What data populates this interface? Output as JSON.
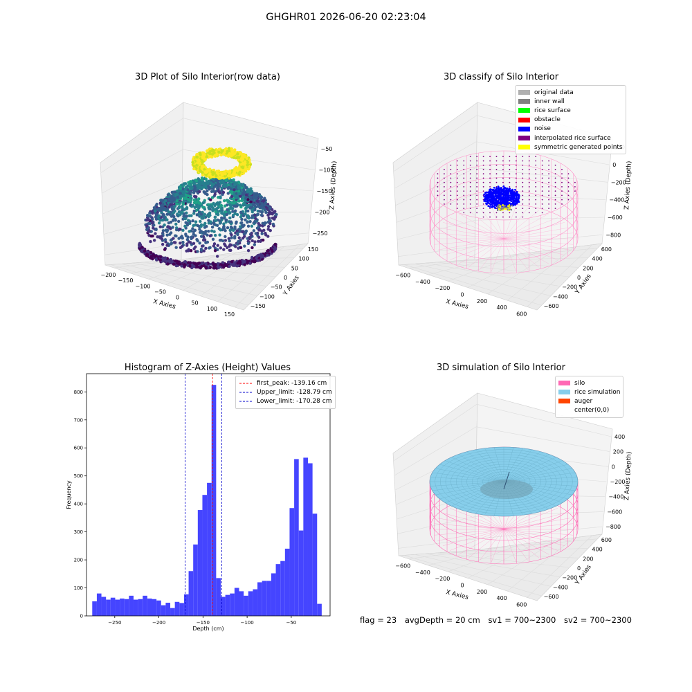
{
  "suptitle": "GHGHR01 2026-06-20 02:23:04",
  "footer": {
    "flag": "flag = 23",
    "avg_depth": "avgDepth = 20 cm",
    "sv1": "sv1 = 700~2300",
    "sv2": "sv2 = 700~2300"
  },
  "chart_data": [
    {
      "type": "scatter",
      "title": "3D Plot of Silo Interior(row data)",
      "xlabel": "X Axies",
      "ylabel": "Y Axies",
      "zlabel": "Z Axies (Depth)",
      "x_ticks": [
        "−200",
        "−150",
        "−100",
        "−50",
        "0",
        "50",
        "100",
        "150"
      ],
      "y_ticks": [
        "−150",
        "−100",
        "−50",
        "0",
        "50",
        "100",
        "150"
      ],
      "z_ticks": [
        "−50",
        "−100",
        "−150",
        "−200",
        "−250"
      ],
      "xlim": [
        -220,
        180
      ],
      "ylim": [
        -170,
        170
      ],
      "zlim": [
        -280,
        -20
      ],
      "colormap": "viridis"
    },
    {
      "type": "scatter",
      "title": "3D classify of Silo Interior",
      "xlabel": "X Axies",
      "ylabel": "Y Axies",
      "zlabel": "Z Axies (Depth)",
      "x_ticks": [
        "−600",
        "−400",
        "−200",
        "0",
        "200",
        "400",
        "600"
      ],
      "y_ticks": [
        "−600",
        "−400",
        "−200",
        "0",
        "200",
        "400",
        "600"
      ],
      "z_ticks": [
        "200",
        "0",
        "−200",
        "−400",
        "−600",
        "−800"
      ],
      "legend": [
        {
          "label": "original data",
          "color": "#b0b0b0"
        },
        {
          "label": "inner wall",
          "color": "#808080"
        },
        {
          "label": "rice surface",
          "color": "#00ff00"
        },
        {
          "label": "obstacle",
          "color": "#ff0000"
        },
        {
          "label": "noise",
          "color": "#0000ff"
        },
        {
          "label": "interpolated rice surface",
          "color": "#800080"
        },
        {
          "label": "symmetric generated points",
          "color": "#ffff00"
        }
      ],
      "legend_position": "top-right"
    },
    {
      "type": "bar",
      "title": "Histogram of Z-Axies (Height) Values",
      "xlabel": "Depth (cm)",
      "ylabel": "Frequency",
      "xlim": [
        -282,
        -6
      ],
      "ylim": [
        0,
        865
      ],
      "x_ticks": [
        -250,
        -200,
        -150,
        -100,
        -50
      ],
      "x_tick_labels": [
        "−250",
        "−200",
        "−150",
        "−100",
        "−50"
      ],
      "y_ticks": [
        0,
        100,
        200,
        300,
        400,
        500,
        600,
        700,
        800
      ],
      "bin_start": -275.5,
      "bin_width": 5.2,
      "values": [
        52,
        80,
        68,
        58,
        65,
        58,
        62,
        60,
        72,
        58,
        60,
        72,
        62,
        60,
        55,
        38,
        47,
        28,
        50,
        46,
        77,
        160,
        255,
        378,
        432,
        475,
        825,
        135,
        68,
        75,
        80,
        100,
        88,
        72,
        88,
        95,
        120,
        125,
        125,
        152,
        185,
        196,
        240,
        385,
        560,
        305,
        565,
        545,
        365,
        43
      ],
      "bar_color": "#4545ff",
      "lines": [
        {
          "label": "first_peak: -139.16 cm",
          "x": -139.16,
          "color": "#ff0000"
        },
        {
          "label": "Upper_limit: -128.79 cm",
          "x": -128.79,
          "color": "#0000cc"
        },
        {
          "label": "Lower_limit: -170.28 cm",
          "x": -170.28,
          "color": "#0000cc"
        }
      ],
      "legend_position": "top-right"
    },
    {
      "type": "scatter",
      "title": "3D simulation of Silo Interior",
      "xlabel": "X Axies",
      "ylabel": "Y Axies",
      "zlabel": "Z Axies (Depth)",
      "x_ticks": [
        "−600",
        "−400",
        "−200",
        "0",
        "200",
        "400",
        "600"
      ],
      "y_ticks": [
        "−600",
        "−400",
        "−200",
        "0",
        "200",
        "400",
        "600"
      ],
      "z_ticks": [
        "400",
        "200",
        "0",
        "−200",
        "−400",
        "−600",
        "−800"
      ],
      "legend": [
        {
          "label": "silo",
          "color": "#ff69b4"
        },
        {
          "label": "rice simulation",
          "color": "#87ceeb"
        },
        {
          "label": "auger",
          "color": "#ff4500"
        },
        {
          "label": "center(0,0)",
          "color": "#ffffff"
        }
      ],
      "legend_position": "top-right"
    }
  ]
}
